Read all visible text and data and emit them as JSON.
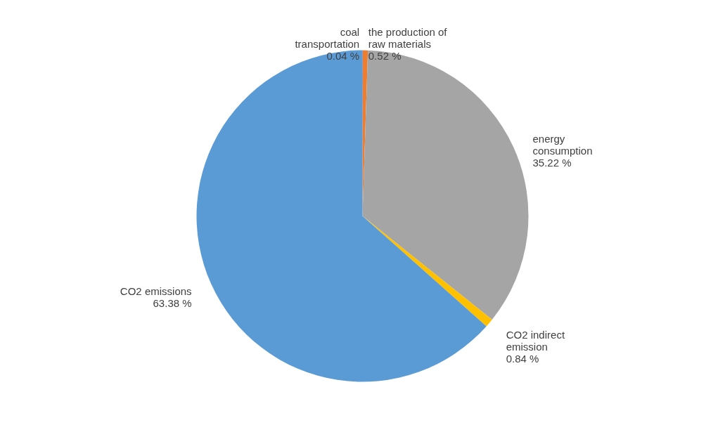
{
  "chart_data": {
    "type": "pie",
    "categories": [
      "the production of raw materials",
      "energy consumption",
      "CO2 indirect emission",
      "CO2 emissions",
      "coal transportation"
    ],
    "values": [
      0.52,
      35.22,
      0.84,
      63.38,
      0.04
    ],
    "value_labels": [
      "0.52 %",
      "35.22 %",
      "0.84 %",
      "63.38 %",
      "0.04 %"
    ],
    "colors": [
      "#ed7d31",
      "#a5a5a5",
      "#ffc000",
      "#5b9bd5",
      "#4472c4"
    ]
  }
}
